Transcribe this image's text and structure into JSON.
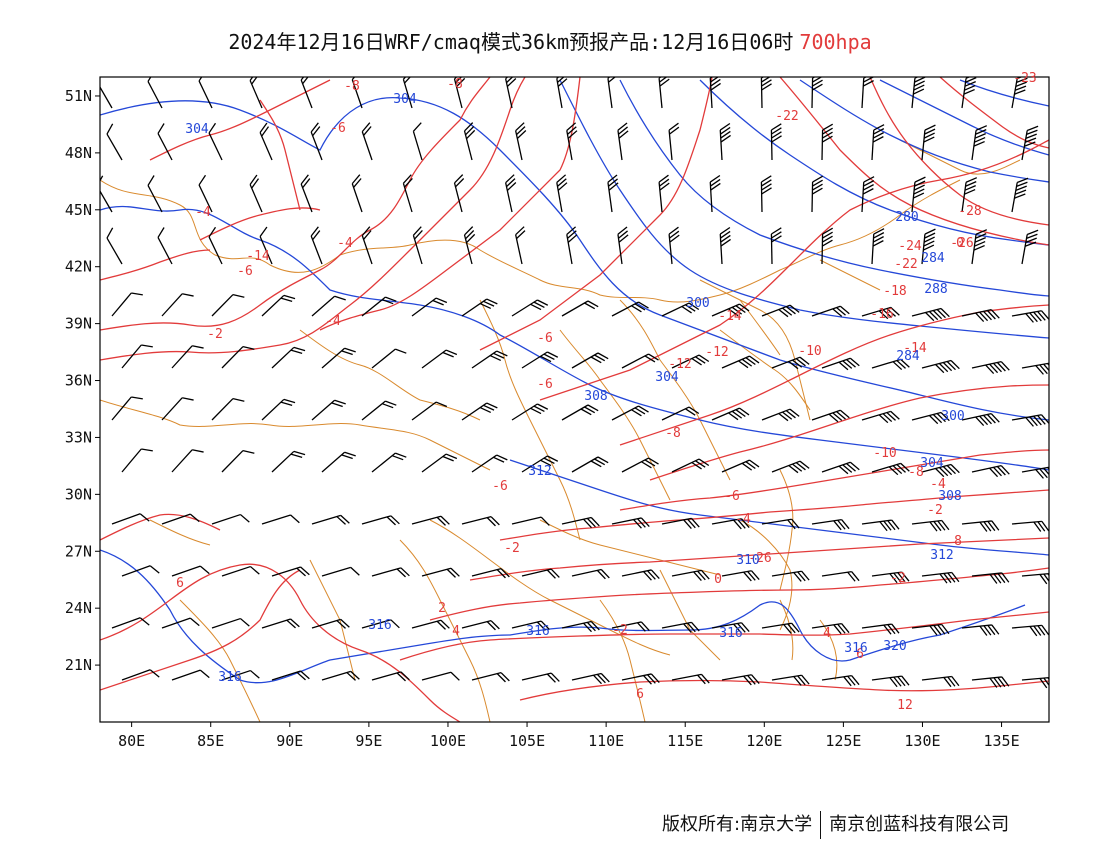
{
  "title": {
    "text": "2024年12月16日WRF/cmaq模式36km预报产品:12月16日06时",
    "level": "700hpa",
    "level_color": "#e23b3b"
  },
  "map": {
    "lon_range": [
      78,
      138
    ],
    "lat_range": [
      18,
      52
    ],
    "x_ticks": [
      "80E",
      "85E",
      "90E",
      "95E",
      "100E",
      "105E",
      "110E",
      "115E",
      "120E",
      "125E",
      "130E",
      "135E"
    ],
    "y_ticks": [
      "51N",
      "48N",
      "45N",
      "42N",
      "39N",
      "36N",
      "33N",
      "30N",
      "27N",
      "24N",
      "21N"
    ],
    "colors": {
      "temperature": "#e23b3b",
      "height": "#2548d8",
      "borders": "#d98a2e",
      "wind": "#000000"
    }
  },
  "temp_labels": [
    "-8",
    "-8",
    "-6",
    "-4",
    "-14",
    "-6",
    "-4",
    "-2",
    "-6",
    "-6",
    "-4",
    "-22",
    "-28",
    "-26",
    "-24",
    "-22",
    "-18",
    "-16",
    "-14",
    "-14",
    "-12",
    "-12",
    "-10",
    "-10",
    "-8",
    "-8",
    "-6",
    "-6",
    "-4",
    "-4",
    "-2",
    "-2",
    "0",
    "-2",
    "2",
    "-2",
    "4",
    "4",
    "6",
    "6",
    "12",
    "6",
    "8",
    "-26",
    "0",
    "-23"
  ],
  "height_labels": [
    "304",
    "304",
    "280",
    "284",
    "288",
    "300",
    "304",
    "308",
    "300",
    "304",
    "308",
    "312",
    "312",
    "310",
    "316",
    "316",
    "316",
    "316",
    "316",
    "320",
    "284"
  ],
  "footer": {
    "left": "版权所有:南京大学",
    "right": "南京创蓝科技有限公司"
  }
}
